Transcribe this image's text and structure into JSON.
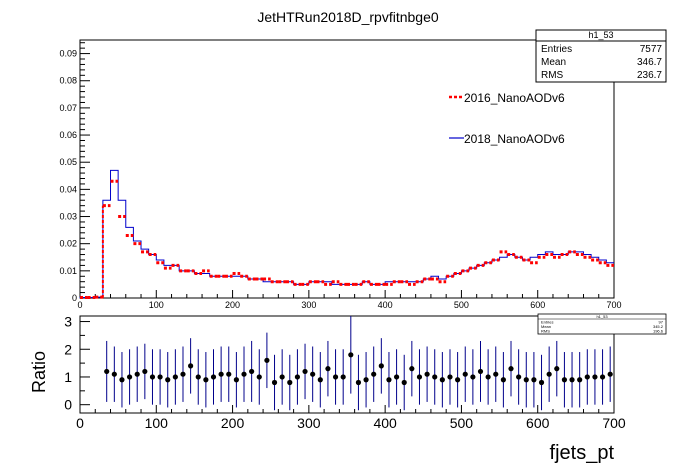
{
  "title": "JetHTRun2018D_rpvfitnbge0",
  "stats_box": {
    "name": "h1_53",
    "rows": [
      {
        "label": "Entries",
        "value": "7577"
      },
      {
        "label": "Mean",
        "value": "346.7"
      },
      {
        "label": "RMS",
        "value": "236.7"
      }
    ]
  },
  "mini_stats_box": {
    "name": "h1_53",
    "rows": [
      {
        "label": "Entries",
        "value": "97"
      },
      {
        "label": "Mean",
        "value": "345.2"
      },
      {
        "label": "RMS",
        "value": "196.6"
      }
    ]
  },
  "colors": {
    "series_2016": "#ff0000",
    "series_2018": "#0000cc",
    "ratio_points": "#000000",
    "ratio_errors": "#00008b"
  },
  "chart_data": [
    {
      "type": "line",
      "title": "JetHTRun2018D_rpvfitnbge0",
      "xlabel": "",
      "ylabel": "",
      "xlim": [
        0,
        700
      ],
      "ylim": [
        0,
        0.095
      ],
      "x_ticks": [
        "0",
        "100",
        "200",
        "300",
        "400",
        "500",
        "600",
        "700"
      ],
      "y_ticks": [
        "0",
        "0.01",
        "0.02",
        "0.03",
        "0.04",
        "0.05",
        "0.06",
        "0.07",
        "0.08",
        "0.09"
      ],
      "legend_position": "top-right",
      "bin_width": 10,
      "x": [
        5,
        15,
        25,
        35,
        45,
        55,
        65,
        75,
        85,
        95,
        105,
        115,
        125,
        135,
        145,
        155,
        165,
        175,
        185,
        195,
        205,
        215,
        225,
        235,
        245,
        255,
        265,
        275,
        285,
        295,
        305,
        315,
        325,
        335,
        345,
        355,
        365,
        375,
        385,
        395,
        405,
        415,
        425,
        435,
        445,
        455,
        465,
        475,
        485,
        495,
        505,
        515,
        525,
        535,
        545,
        555,
        565,
        575,
        585,
        595,
        605,
        615,
        625,
        635,
        645,
        655,
        665,
        675,
        685,
        695
      ],
      "series": [
        {
          "name": "2016_NanoAODv6",
          "style": "dashed-markers",
          "values": [
            0.0002,
            0.0002,
            0.0003,
            0.034,
            0.043,
            0.03,
            0.023,
            0.02,
            0.017,
            0.016,
            0.013,
            0.011,
            0.012,
            0.01,
            0.01,
            0.009,
            0.01,
            0.008,
            0.008,
            0.008,
            0.009,
            0.008,
            0.007,
            0.007,
            0.007,
            0.006,
            0.006,
            0.006,
            0.005,
            0.005,
            0.006,
            0.006,
            0.005,
            0.006,
            0.005,
            0.005,
            0.005,
            0.006,
            0.005,
            0.005,
            0.005,
            0.006,
            0.006,
            0.005,
            0.006,
            0.007,
            0.007,
            0.006,
            0.008,
            0.009,
            0.01,
            0.011,
            0.012,
            0.013,
            0.014,
            0.017,
            0.016,
            0.015,
            0.014,
            0.013,
            0.015,
            0.016,
            0.015,
            0.016,
            0.017,
            0.016,
            0.015,
            0.014,
            0.013,
            0.012
          ]
        },
        {
          "name": "2018_NanoAODv6",
          "style": "step",
          "values": [
            0.0002,
            0.0002,
            0.0003,
            0.036,
            0.047,
            0.036,
            0.026,
            0.021,
            0.018,
            0.016,
            0.014,
            0.012,
            0.012,
            0.01,
            0.01,
            0.009,
            0.009,
            0.008,
            0.008,
            0.008,
            0.008,
            0.008,
            0.007,
            0.007,
            0.006,
            0.006,
            0.006,
            0.006,
            0.005,
            0.005,
            0.006,
            0.006,
            0.006,
            0.005,
            0.005,
            0.005,
            0.005,
            0.006,
            0.005,
            0.005,
            0.006,
            0.006,
            0.006,
            0.006,
            0.006,
            0.007,
            0.008,
            0.007,
            0.008,
            0.009,
            0.01,
            0.011,
            0.012,
            0.013,
            0.014,
            0.015,
            0.016,
            0.015,
            0.014,
            0.015,
            0.016,
            0.017,
            0.016,
            0.016,
            0.017,
            0.017,
            0.016,
            0.015,
            0.014,
            0.013
          ]
        }
      ]
    },
    {
      "type": "scatter",
      "xlabel": "fjets_pt",
      "ylabel": "Ratio",
      "xlim": [
        0,
        700
      ],
      "ylim": [
        -0.3,
        3.2
      ],
      "x_ticks": [
        "0",
        "100",
        "200",
        "300",
        "400",
        "500",
        "600",
        "700"
      ],
      "y_ticks": [
        "0",
        "1",
        "2",
        "3"
      ],
      "x": [
        35,
        45,
        55,
        65,
        75,
        85,
        95,
        105,
        115,
        125,
        135,
        145,
        155,
        165,
        175,
        185,
        195,
        205,
        215,
        225,
        235,
        245,
        255,
        265,
        275,
        285,
        295,
        305,
        315,
        325,
        335,
        345,
        355,
        365,
        375,
        385,
        395,
        405,
        415,
        425,
        435,
        445,
        455,
        465,
        475,
        485,
        495,
        505,
        515,
        525,
        535,
        545,
        555,
        565,
        575,
        585,
        595,
        605,
        615,
        625,
        635,
        645,
        655,
        665,
        675,
        685,
        695
      ],
      "values": [
        1.2,
        1.1,
        0.9,
        1.0,
        1.1,
        1.2,
        1.0,
        1.0,
        0.9,
        1.0,
        1.1,
        1.4,
        1.0,
        0.9,
        1.0,
        1.1,
        1.1,
        0.9,
        1.1,
        1.2,
        1.0,
        1.6,
        0.8,
        1.0,
        0.8,
        1.0,
        1.2,
        1.1,
        0.9,
        1.3,
        1.0,
        1.0,
        1.8,
        0.8,
        0.9,
        1.1,
        1.4,
        0.9,
        1.0,
        0.8,
        1.3,
        1.0,
        1.1,
        1.0,
        0.9,
        1.0,
        0.9,
        1.1,
        1.0,
        1.2,
        1.0,
        1.1,
        0.9,
        1.3,
        1.0,
        0.9,
        0.9,
        0.8,
        1.1,
        1.3,
        0.9,
        0.9,
        0.9,
        1.0,
        1.0,
        1.0,
        1.1
      ],
      "errors": [
        1.1,
        1.0,
        1.0,
        1.0,
        1.0,
        1.0,
        1.0,
        1.0,
        1.0,
        1.0,
        1.0,
        1.0,
        1.0,
        1.0,
        1.0,
        1.0,
        1.0,
        1.0,
        1.0,
        1.1,
        1.0,
        1.0,
        1.0,
        1.0,
        1.0,
        1.0,
        1.0,
        1.0,
        1.0,
        1.0,
        1.0,
        1.0,
        1.4,
        1.0,
        1.0,
        1.0,
        1.0,
        1.0,
        1.0,
        1.0,
        1.0,
        1.0,
        1.0,
        1.0,
        1.0,
        1.0,
        1.0,
        1.0,
        1.0,
        1.1,
        1.0,
        1.0,
        1.0,
        1.0,
        1.0,
        1.0,
        1.0,
        1.0,
        1.0,
        1.0,
        1.0,
        1.0,
        1.0,
        1.0,
        1.0,
        1.0,
        1.0
      ]
    }
  ]
}
